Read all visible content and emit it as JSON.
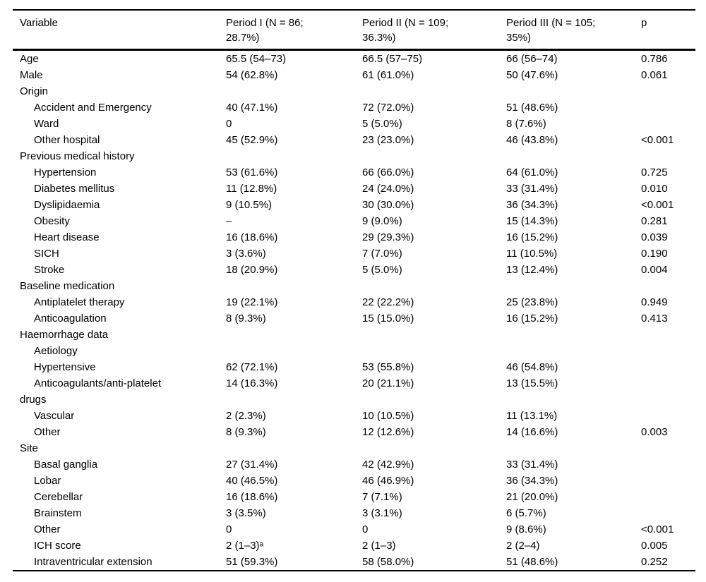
{
  "table": {
    "columns": [
      {
        "label": "Variable"
      },
      {
        "line1": "Period I (N = 86;",
        "line2": "28.7%)"
      },
      {
        "line1": "Period II (N = 109;",
        "line2": "36.3%)"
      },
      {
        "line1": "Period III (N = 105;",
        "line2": "35%)"
      },
      {
        "label": "p"
      }
    ],
    "rows": [
      {
        "label": "Age",
        "indent": 0,
        "values": [
          "65.5 (54–73)",
          "66.5 (57–75)",
          "66 (56–74)",
          "0.786"
        ]
      },
      {
        "label": "Male",
        "indent": 0,
        "values": [
          "54 (62.8%)",
          "61 (61.0%)",
          "50 (47.6%)",
          "0.061"
        ]
      },
      {
        "label": "Origin",
        "indent": 0,
        "values": [
          "",
          "",
          "",
          ""
        ]
      },
      {
        "label": "Accident and Emergency",
        "indent": 1,
        "values": [
          "40 (47.1%)",
          "72 (72.0%)",
          "51 (48.6%)",
          ""
        ]
      },
      {
        "label": "Ward",
        "indent": 1,
        "values": [
          "0",
          "5 (5.0%)",
          "8 (7.6%)",
          ""
        ]
      },
      {
        "label": "Other hospital",
        "indent": 1,
        "values": [
          "45 (52.9%)",
          "23 (23.0%)",
          "46 (43.8%)",
          "<0.001"
        ]
      },
      {
        "label": "Previous medical history",
        "indent": 0,
        "values": [
          "",
          "",
          "",
          ""
        ]
      },
      {
        "label": "Hypertension",
        "indent": 1,
        "values": [
          "53 (61.6%)",
          "66 (66.0%)",
          "64 (61.0%)",
          "0.725"
        ]
      },
      {
        "label": "Diabetes mellitus",
        "indent": 1,
        "values": [
          "11 (12.8%)",
          "24 (24.0%)",
          "33 (31.4%)",
          "0.010"
        ]
      },
      {
        "label": "Dyslipidaemia",
        "indent": 1,
        "values": [
          "9 (10.5%)",
          "30 (30.0%)",
          "36 (34.3%)",
          "<0.001"
        ]
      },
      {
        "label": "Obesity",
        "indent": 1,
        "values": [
          "–",
          "9 (9.0%)",
          "15 (14.3%)",
          "0.281"
        ]
      },
      {
        "label": "Heart disease",
        "indent": 1,
        "values": [
          "16 (18.6%)",
          "29 (29.3%)",
          "16 (15.2%)",
          "0.039"
        ]
      },
      {
        "label": "SICH",
        "indent": 1,
        "values": [
          "3 (3.6%)",
          "7 (7.0%)",
          "11 (10.5%)",
          "0.190"
        ]
      },
      {
        "label": "Stroke",
        "indent": 1,
        "values": [
          "18 (20.9%)",
          "5 (5.0%)",
          "13 (12.4%)",
          "0.004"
        ]
      },
      {
        "label": "Baseline medication",
        "indent": 0,
        "values": [
          "",
          "",
          "",
          ""
        ]
      },
      {
        "label": "Antiplatelet therapy",
        "indent": 1,
        "values": [
          "19 (22.1%)",
          "22 (22.2%)",
          "25 (23.8%)",
          "0.949"
        ]
      },
      {
        "label": "Anticoagulation",
        "indent": 1,
        "values": [
          "8 (9.3%)",
          "15 (15.0%)",
          "16 (15.2%)",
          "0.413"
        ]
      },
      {
        "label": "Haemorrhage data",
        "indent": 0,
        "values": [
          "",
          "",
          "",
          ""
        ]
      },
      {
        "label": "Aetiology",
        "indent": 1,
        "values": [
          "",
          "",
          "",
          ""
        ]
      },
      {
        "label": "Hypertensive",
        "indent": 1,
        "values": [
          "62 (72.1%)",
          "53 (55.8%)",
          "46 (54.8%)",
          ""
        ]
      },
      {
        "label": "Anticoagulants/anti-platelet",
        "indent": 1,
        "values": [
          "14 (16.3%)",
          "20 (21.1%)",
          "13 (15.5%)",
          ""
        ]
      },
      {
        "label": "drugs",
        "indent": 0,
        "values": [
          "",
          "",
          "",
          ""
        ]
      },
      {
        "label": "Vascular",
        "indent": 1,
        "values": [
          "2 (2.3%)",
          "10 (10.5%)",
          "11 (13.1%)",
          ""
        ]
      },
      {
        "label": "Other",
        "indent": 1,
        "values": [
          "8 (9.3%)",
          "12 (12.6%)",
          "14 (16.6%)",
          "0.003"
        ]
      },
      {
        "label": "Site",
        "indent": 0,
        "values": [
          "",
          "",
          "",
          ""
        ]
      },
      {
        "label": "Basal ganglia",
        "indent": 1,
        "values": [
          "27 (31.4%)",
          "42 (42.9%)",
          "33 (31.4%)",
          ""
        ]
      },
      {
        "label": "Lobar",
        "indent": 1,
        "values": [
          "40 (46.5%)",
          "46 (46.9%)",
          "36 (34.3%)",
          ""
        ]
      },
      {
        "label": "Cerebellar",
        "indent": 1,
        "values": [
          "16 (18.6%)",
          "7 (7.1%)",
          "21 (20.0%)",
          ""
        ]
      },
      {
        "label": "Brainstem",
        "indent": 1,
        "values": [
          "3 (3.5%)",
          "3 (3.1%)",
          "6 (5.7%)",
          ""
        ]
      },
      {
        "label": "Other",
        "indent": 1,
        "values": [
          "0",
          "0",
          "9 (8.6%)",
          "<0.001"
        ]
      },
      {
        "label": "ICH score",
        "indent": 1,
        "values": [
          "2 (1–3)ᵃ",
          "2 (1–3)",
          "2 (2–4)",
          "0.005"
        ]
      },
      {
        "label": "Intraventricular extension",
        "indent": 1,
        "values": [
          "51 (59.3%)",
          "58 (58.0%)",
          "51 (48.6%)",
          "0.252"
        ]
      }
    ]
  }
}
